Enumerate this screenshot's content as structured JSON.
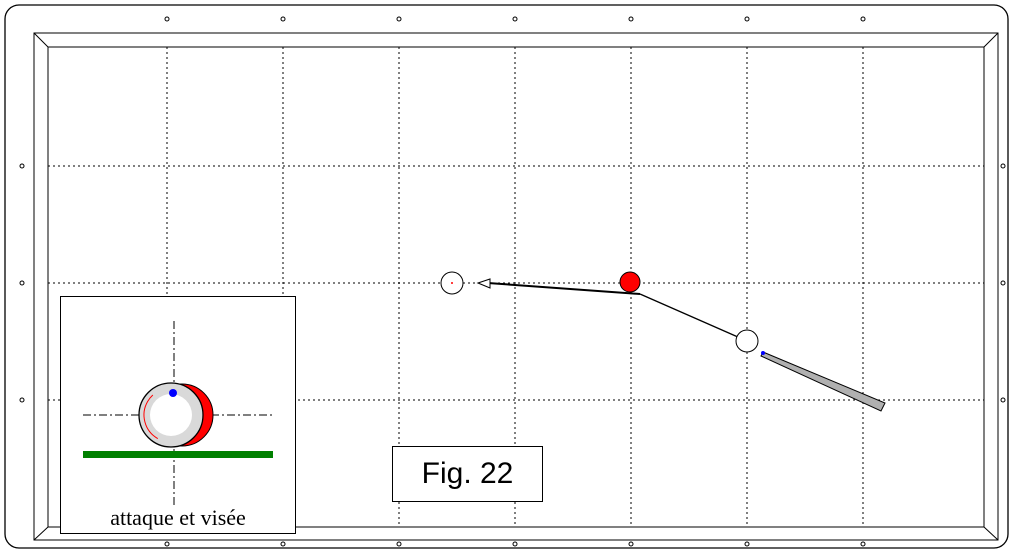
{
  "figure": {
    "label": "Fig. 22"
  },
  "inset": {
    "caption": "attaque et visée"
  },
  "colors": {
    "cloth": "#ffffff",
    "line": "#000000",
    "grid": "#000000",
    "object_ball": "#ff0000",
    "contact_dot": "#0000ff",
    "rail_shadow": "#008000",
    "cue": "#b0b0b0"
  },
  "icons": [
    "diamond-marker-icon",
    "cue-ball-icon",
    "object-ball-icon",
    "cue-stick-icon",
    "aim-point-icon"
  ]
}
